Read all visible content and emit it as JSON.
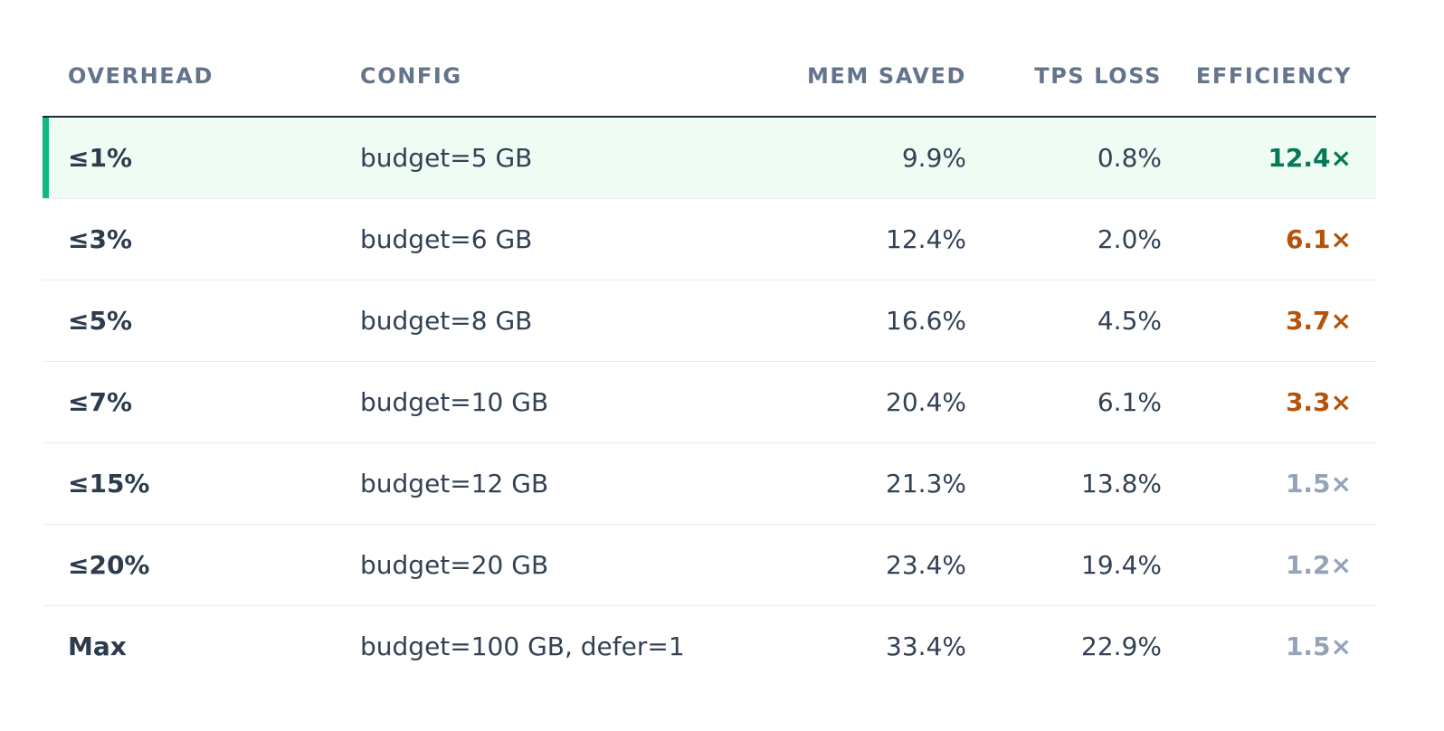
{
  "table": {
    "headers": {
      "overhead": "OVERHEAD",
      "config": "CONFIG",
      "mem_saved": "MEM SAVED",
      "tps_loss": "TPS LOSS",
      "efficiency": "EFFICIENCY"
    },
    "rows": [
      {
        "overhead": "≤1%",
        "config": "budget=5 GB",
        "mem_saved": "9.9%",
        "tps_loss": "0.8%",
        "efficiency": "12.4×"
      },
      {
        "overhead": "≤3%",
        "config": "budget=6 GB",
        "mem_saved": "12.4%",
        "tps_loss": "2.0%",
        "efficiency": "6.1×"
      },
      {
        "overhead": "≤5%",
        "config": "budget=8 GB",
        "mem_saved": "16.6%",
        "tps_loss": "4.5%",
        "efficiency": "3.7×"
      },
      {
        "overhead": "≤7%",
        "config": "budget=10 GB",
        "mem_saved": "20.4%",
        "tps_loss": "6.1%",
        "efficiency": "3.3×"
      },
      {
        "overhead": "≤15%",
        "config": "budget=12 GB",
        "mem_saved": "21.3%",
        "tps_loss": "13.8%",
        "efficiency": "1.5×"
      },
      {
        "overhead": "≤20%",
        "config": "budget=20 GB",
        "mem_saved": "23.4%",
        "tps_loss": "19.4%",
        "efficiency": "1.2×"
      },
      {
        "overhead": "Max",
        "config": "budget=100 GB, defer=1",
        "mem_saved": "33.4%",
        "tps_loss": "22.9%",
        "efficiency": "1.5×"
      }
    ]
  },
  "colors": {
    "highlight_bg": "#effcf4",
    "highlight_accent": "#10b981",
    "efficiency_high": "#047857",
    "efficiency_mid": "#b45309",
    "efficiency_low": "#94a3b8"
  }
}
